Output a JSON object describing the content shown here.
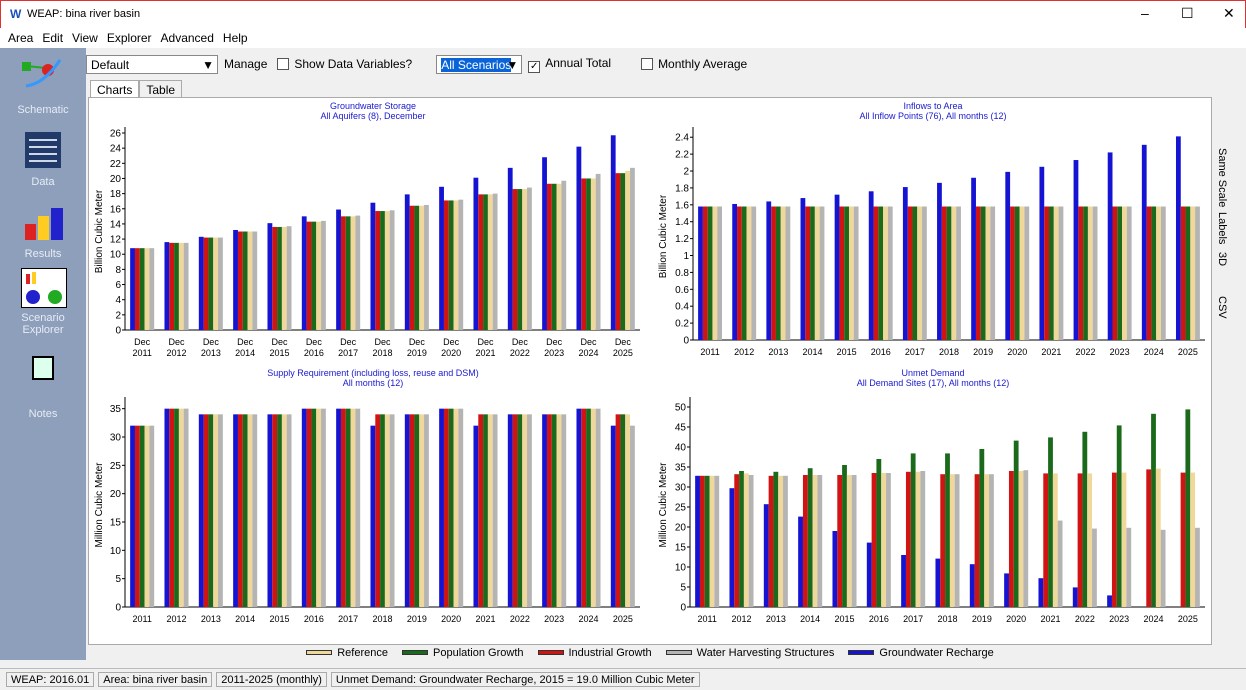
{
  "window": {
    "title": "WEAP: bina river basin",
    "menu": [
      "Area",
      "Edit",
      "View",
      "Explorer",
      "Advanced",
      "Help"
    ]
  },
  "toolbar": {
    "favorite": "Default",
    "manage": "Manage",
    "show_data": "Show Data Variables?",
    "scenarios": "All Scenarios",
    "annual_total": "Annual Total",
    "monthly_average": "Monthly Average"
  },
  "sidebar": [
    "Schematic",
    "Data",
    "Results",
    "Scenario Explorer",
    "Notes"
  ],
  "tabs": [
    "Charts",
    "Table"
  ],
  "right_panel": [
    "Same Scale",
    "Labels",
    "3D",
    "CSV"
  ],
  "status": [
    "WEAP: 2016.01",
    "Area: bina river basin",
    "2011-2025 (monthly)",
    "Unmet Demand: Groundwater Recharge, 2015 = 19.0 Million Cubic Meter"
  ],
  "chart_data": [
    {
      "type": "bar",
      "title": "Groundwater Storage",
      "subtitle": "All Aquifers (8),  December",
      "y_label": "Billion Cubic Meter",
      "categories": [
        "Dec 2011",
        "Dec 2012",
        "Dec 2013",
        "Dec 2014",
        "Dec 2015",
        "Dec 2016",
        "Dec 2017",
        "Dec 2018",
        "Dec 2019",
        "Dec 2020",
        "Dec 2021",
        "Dec 2022",
        "Dec 2023",
        "Dec 2024",
        "Dec 2025"
      ],
      "ylim": [
        0,
        26
      ],
      "yticks": [
        0,
        2,
        4,
        6,
        8,
        10,
        12,
        14,
        16,
        18,
        20,
        22,
        24,
        26
      ],
      "series": [
        {
          "name": "Reference",
          "color": "#efd89a",
          "values": [
            10.8,
            11.5,
            12.2,
            13.0,
            13.6,
            14.3,
            15.0,
            15.7,
            16.4,
            17.1,
            17.9,
            18.6,
            19.3,
            20.0,
            21.0
          ]
        },
        {
          "name": "Population Growth",
          "color": "#1b6a1b",
          "values": [
            10.8,
            11.5,
            12.2,
            13.0,
            13.6,
            14.3,
            15.0,
            15.7,
            16.4,
            17.1,
            17.9,
            18.6,
            19.3,
            20.0,
            20.7
          ]
        },
        {
          "name": "Industrial Growth",
          "color": "#d01414",
          "values": [
            10.8,
            11.5,
            12.2,
            13.0,
            13.6,
            14.3,
            15.0,
            15.7,
            16.4,
            17.1,
            17.9,
            18.6,
            19.3,
            20.0,
            20.7
          ]
        },
        {
          "name": "Water Harvesting Structures",
          "color": "#b4b4b4",
          "values": [
            10.8,
            11.5,
            12.2,
            13.0,
            13.7,
            14.4,
            15.1,
            15.8,
            16.5,
            17.2,
            18.0,
            18.8,
            19.7,
            20.6,
            21.4
          ]
        },
        {
          "name": "Groundwater Recharge",
          "color": "#1414d2",
          "values": [
            10.8,
            11.6,
            12.3,
            13.2,
            14.1,
            15.0,
            15.9,
            16.8,
            17.9,
            18.9,
            20.1,
            21.4,
            22.8,
            24.2,
            25.7
          ]
        }
      ]
    },
    {
      "type": "bar",
      "title": "Inflows to Area",
      "subtitle": "All Inflow Points (76),  All months (12)",
      "y_label": "Billion Cubic Meter",
      "categories": [
        "2011",
        "2012",
        "2013",
        "2014",
        "2015",
        "2016",
        "2017",
        "2018",
        "2019",
        "2020",
        "2021",
        "2022",
        "2023",
        "2024",
        "2025"
      ],
      "ylim": [
        0,
        2.45
      ],
      "yticks": [
        0,
        0.2,
        0.4,
        0.6,
        0.8,
        1,
        1.2,
        1.4,
        1.6,
        1.8,
        2,
        2.2,
        2.4
      ],
      "series": [
        {
          "name": "Reference",
          "color": "#efd89a",
          "values": [
            1.58,
            1.58,
            1.58,
            1.58,
            1.58,
            1.58,
            1.58,
            1.58,
            1.58,
            1.58,
            1.58,
            1.58,
            1.58,
            1.58,
            1.58
          ]
        },
        {
          "name": "Population Growth",
          "color": "#1b6a1b",
          "values": [
            1.58,
            1.58,
            1.58,
            1.58,
            1.58,
            1.58,
            1.58,
            1.58,
            1.58,
            1.58,
            1.58,
            1.58,
            1.58,
            1.58,
            1.58
          ]
        },
        {
          "name": "Industrial Growth",
          "color": "#d01414",
          "values": [
            1.58,
            1.58,
            1.58,
            1.58,
            1.58,
            1.58,
            1.58,
            1.58,
            1.58,
            1.58,
            1.58,
            1.58,
            1.58,
            1.58,
            1.58
          ]
        },
        {
          "name": "Water Harvesting Structures",
          "color": "#b4b4b4",
          "values": [
            1.58,
            1.58,
            1.58,
            1.58,
            1.58,
            1.58,
            1.58,
            1.58,
            1.58,
            1.58,
            1.58,
            1.58,
            1.58,
            1.58,
            1.58
          ]
        },
        {
          "name": "Groundwater Recharge",
          "color": "#1414d2",
          "values": [
            1.58,
            1.61,
            1.64,
            1.68,
            1.72,
            1.76,
            1.81,
            1.86,
            1.92,
            1.99,
            2.05,
            2.13,
            2.22,
            2.31,
            2.41
          ]
        }
      ]
    },
    {
      "type": "bar",
      "title": "Supply Requirement (including loss, reuse and DSM)",
      "subtitle": "All months (12)",
      "y_label": "Million Cubic Meter",
      "categories": [
        "2011",
        "2012",
        "2013",
        "2014",
        "2015",
        "2016",
        "2017",
        "2018",
        "2019",
        "2020",
        "2021",
        "2022",
        "2023",
        "2024",
        "2025"
      ],
      "ylim": [
        0,
        36
      ],
      "yticks": [
        0,
        5,
        10,
        15,
        20,
        25,
        30,
        35
      ],
      "series": [
        {
          "name": "Reference",
          "color": "#efd89a",
          "values": [
            32,
            35,
            34,
            34,
            34,
            35,
            35,
            34,
            34,
            35,
            34,
            34,
            34,
            35,
            34
          ]
        },
        {
          "name": "Population Growth",
          "color": "#1b6a1b",
          "values": [
            32,
            35,
            34,
            34,
            34,
            35,
            35,
            34,
            34,
            35,
            34,
            34,
            34,
            35,
            34
          ]
        },
        {
          "name": "Industrial Growth",
          "color": "#d01414",
          "values": [
            32,
            35,
            34,
            34,
            34,
            35,
            35,
            34,
            34,
            35,
            34,
            34,
            34,
            35,
            34
          ]
        },
        {
          "name": "Water Harvesting Structures",
          "color": "#b4b4b4",
          "values": [
            32,
            35,
            34,
            34,
            34,
            35,
            35,
            34,
            34,
            35,
            34,
            34,
            34,
            35,
            32
          ]
        },
        {
          "name": "Groundwater Recharge",
          "color": "#1414d2",
          "values": [
            32,
            35,
            34,
            34,
            34,
            35,
            35,
            32,
            34,
            35,
            32,
            34,
            34,
            35,
            32
          ]
        }
      ]
    },
    {
      "type": "bar",
      "title": "Unmet Demand",
      "subtitle": "All Demand Sites (17),  All months (12)",
      "y_label": "Million Cubic Meter",
      "categories": [
        "2011",
        "2012",
        "2013",
        "2014",
        "2015",
        "2016",
        "2017",
        "2018",
        "2019",
        "2020",
        "2021",
        "2022",
        "2023",
        "2024",
        "2025"
      ],
      "ylim": [
        0,
        51
      ],
      "yticks": [
        0,
        5,
        10,
        15,
        20,
        25,
        30,
        35,
        40,
        45,
        50
      ],
      "series": [
        {
          "name": "Reference",
          "color": "#efd89a",
          "values": [
            32.8,
            33.4,
            32.8,
            33.0,
            33.0,
            33.5,
            33.8,
            33.2,
            33.2,
            34.0,
            33.4,
            33.4,
            33.6,
            34.6,
            33.6
          ]
        },
        {
          "name": "Population Growth",
          "color": "#1b6a1b",
          "values": [
            32.8,
            34.0,
            33.8,
            34.7,
            35.5,
            37.0,
            38.4,
            38.4,
            39.5,
            41.6,
            42.4,
            43.8,
            45.4,
            48.3,
            49.4
          ]
        },
        {
          "name": "Industrial Growth",
          "color": "#d01414",
          "values": [
            32.8,
            33.2,
            32.8,
            33.0,
            33.0,
            33.5,
            33.8,
            33.2,
            33.2,
            34.0,
            33.4,
            33.4,
            33.6,
            34.4,
            33.6
          ]
        },
        {
          "name": "Water Harvesting Structures",
          "color": "#b4b4b4",
          "values": [
            32.8,
            33.0,
            32.8,
            33.0,
            33.0,
            33.5,
            34.0,
            33.2,
            33.2,
            34.2,
            21.6,
            19.6,
            19.8,
            19.3,
            19.8
          ]
        },
        {
          "name": "Groundwater Recharge",
          "color": "#1414d2",
          "values": [
            32.8,
            29.7,
            25.7,
            22.6,
            19.0,
            16.1,
            13.0,
            12.1,
            10.7,
            8.4,
            7.2,
            4.9,
            2.9,
            0,
            0
          ]
        }
      ]
    }
  ]
}
